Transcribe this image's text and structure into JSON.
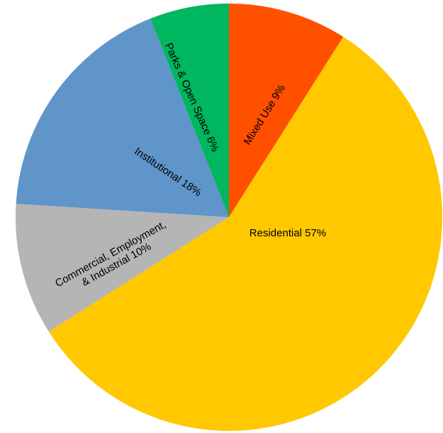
{
  "chart_data": {
    "type": "pie",
    "title": "",
    "start": "top",
    "direction": "clockwise",
    "slices": [
      {
        "category": "Mixed Use",
        "value": 9,
        "value_label": "9%",
        "color": "#FF5000",
        "label_lines": [
          "Mixed Use 9%"
        ]
      },
      {
        "category": "Residential",
        "value": 57,
        "value_label": "57%",
        "color": "#FFC800",
        "label_lines": [
          "Residential 57%"
        ]
      },
      {
        "category": "Commercial, Employment, & Industrial",
        "value": 10,
        "value_label": "10%",
        "color": "#B5B5B5",
        "label_lines": [
          "Commercial, Employment,",
          "& Industrial 10%"
        ]
      },
      {
        "category": "Institutional",
        "value": 18,
        "value_label": "18%",
        "color": "#5F95C9",
        "label_lines": [
          "Institutional 18%"
        ]
      },
      {
        "category": "Parks & Open Space",
        "value": 6,
        "value_label": "6%",
        "color": "#00B65E",
        "label_lines": [
          "Parks & Open Space 6%"
        ]
      }
    ]
  }
}
